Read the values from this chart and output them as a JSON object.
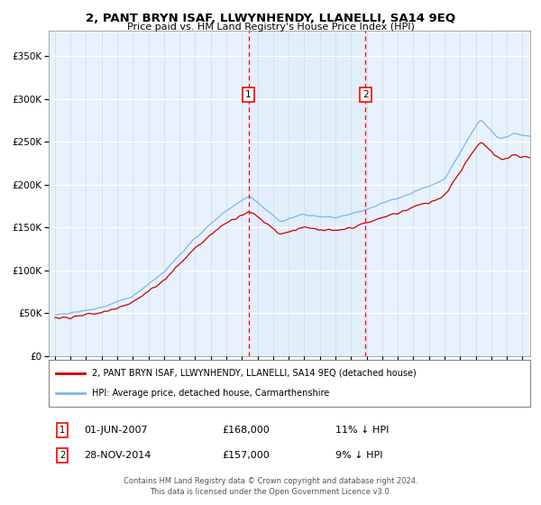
{
  "title": "2, PANT BRYN ISAF, LLWYNHENDY, LLANELLI, SA14 9EQ",
  "subtitle": "Price paid vs. HM Land Registry's House Price Index (HPI)",
  "legend_line1": "2, PANT BRYN ISAF, LLWYNHENDY, LLANELLI, SA14 9EQ (detached house)",
  "legend_line2": "HPI: Average price, detached house, Carmarthenshire",
  "annotation1_date": "01-JUN-2007",
  "annotation1_price": "£168,000",
  "annotation1_hpi": "11% ↓ HPI",
  "annotation2_date": "28-NOV-2014",
  "annotation2_price": "£157,000",
  "annotation2_hpi": "9% ↓ HPI",
  "footer": "Contains HM Land Registry data © Crown copyright and database right 2024.\nThis data is licensed under the Open Government Licence v3.0.",
  "hpi_color": "#7ab8e8",
  "price_color": "#cc0000",
  "marker1_year": 2007.42,
  "marker2_year": 2014.92,
  "ylim": [
    0,
    380000
  ],
  "yticks": [
    0,
    50000,
    100000,
    150000,
    200000,
    250000,
    300000,
    350000
  ],
  "year_start": 1995,
  "year_end": 2025,
  "background_color": "#ffffff",
  "plot_bg_color": "#e8f2fc"
}
